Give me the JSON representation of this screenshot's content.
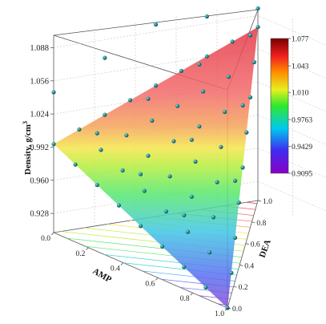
{
  "chart_data": {
    "type": "3d-surface-scatter",
    "zlabel": "Density, g/cm",
    "zlabel_sup": "3",
    "xlabel": "AMP",
    "ylabel": "DEA",
    "x_ticks": [
      "0.0",
      "0.2",
      "0.4",
      "0.6",
      "0.8",
      "1.0"
    ],
    "y_ticks": [
      "0.0",
      "0.2",
      "0.4",
      "0.6",
      "0.8",
      "1.0"
    ],
    "z_ticks": [
      "0.928",
      "0.960",
      "0.992",
      "1.024",
      "1.056",
      "1.088"
    ],
    "zlim": [
      0.9095,
      1.1
    ],
    "colorbar": {
      "min": 0.9095,
      "max": 1.077,
      "ticks": [
        "0.9095",
        "0.9429",
        "0.9763",
        "1.010",
        "1.043",
        "1.077"
      ]
    },
    "surface_corners": [
      {
        "amp": 0.0,
        "dea": 0.0,
        "density": 0.995
      },
      {
        "amp": 1.0,
        "dea": 0.0,
        "density": 0.9095
      },
      {
        "amp": 0.0,
        "dea": 1.0,
        "density": 1.077
      }
    ],
    "grid": true
  }
}
